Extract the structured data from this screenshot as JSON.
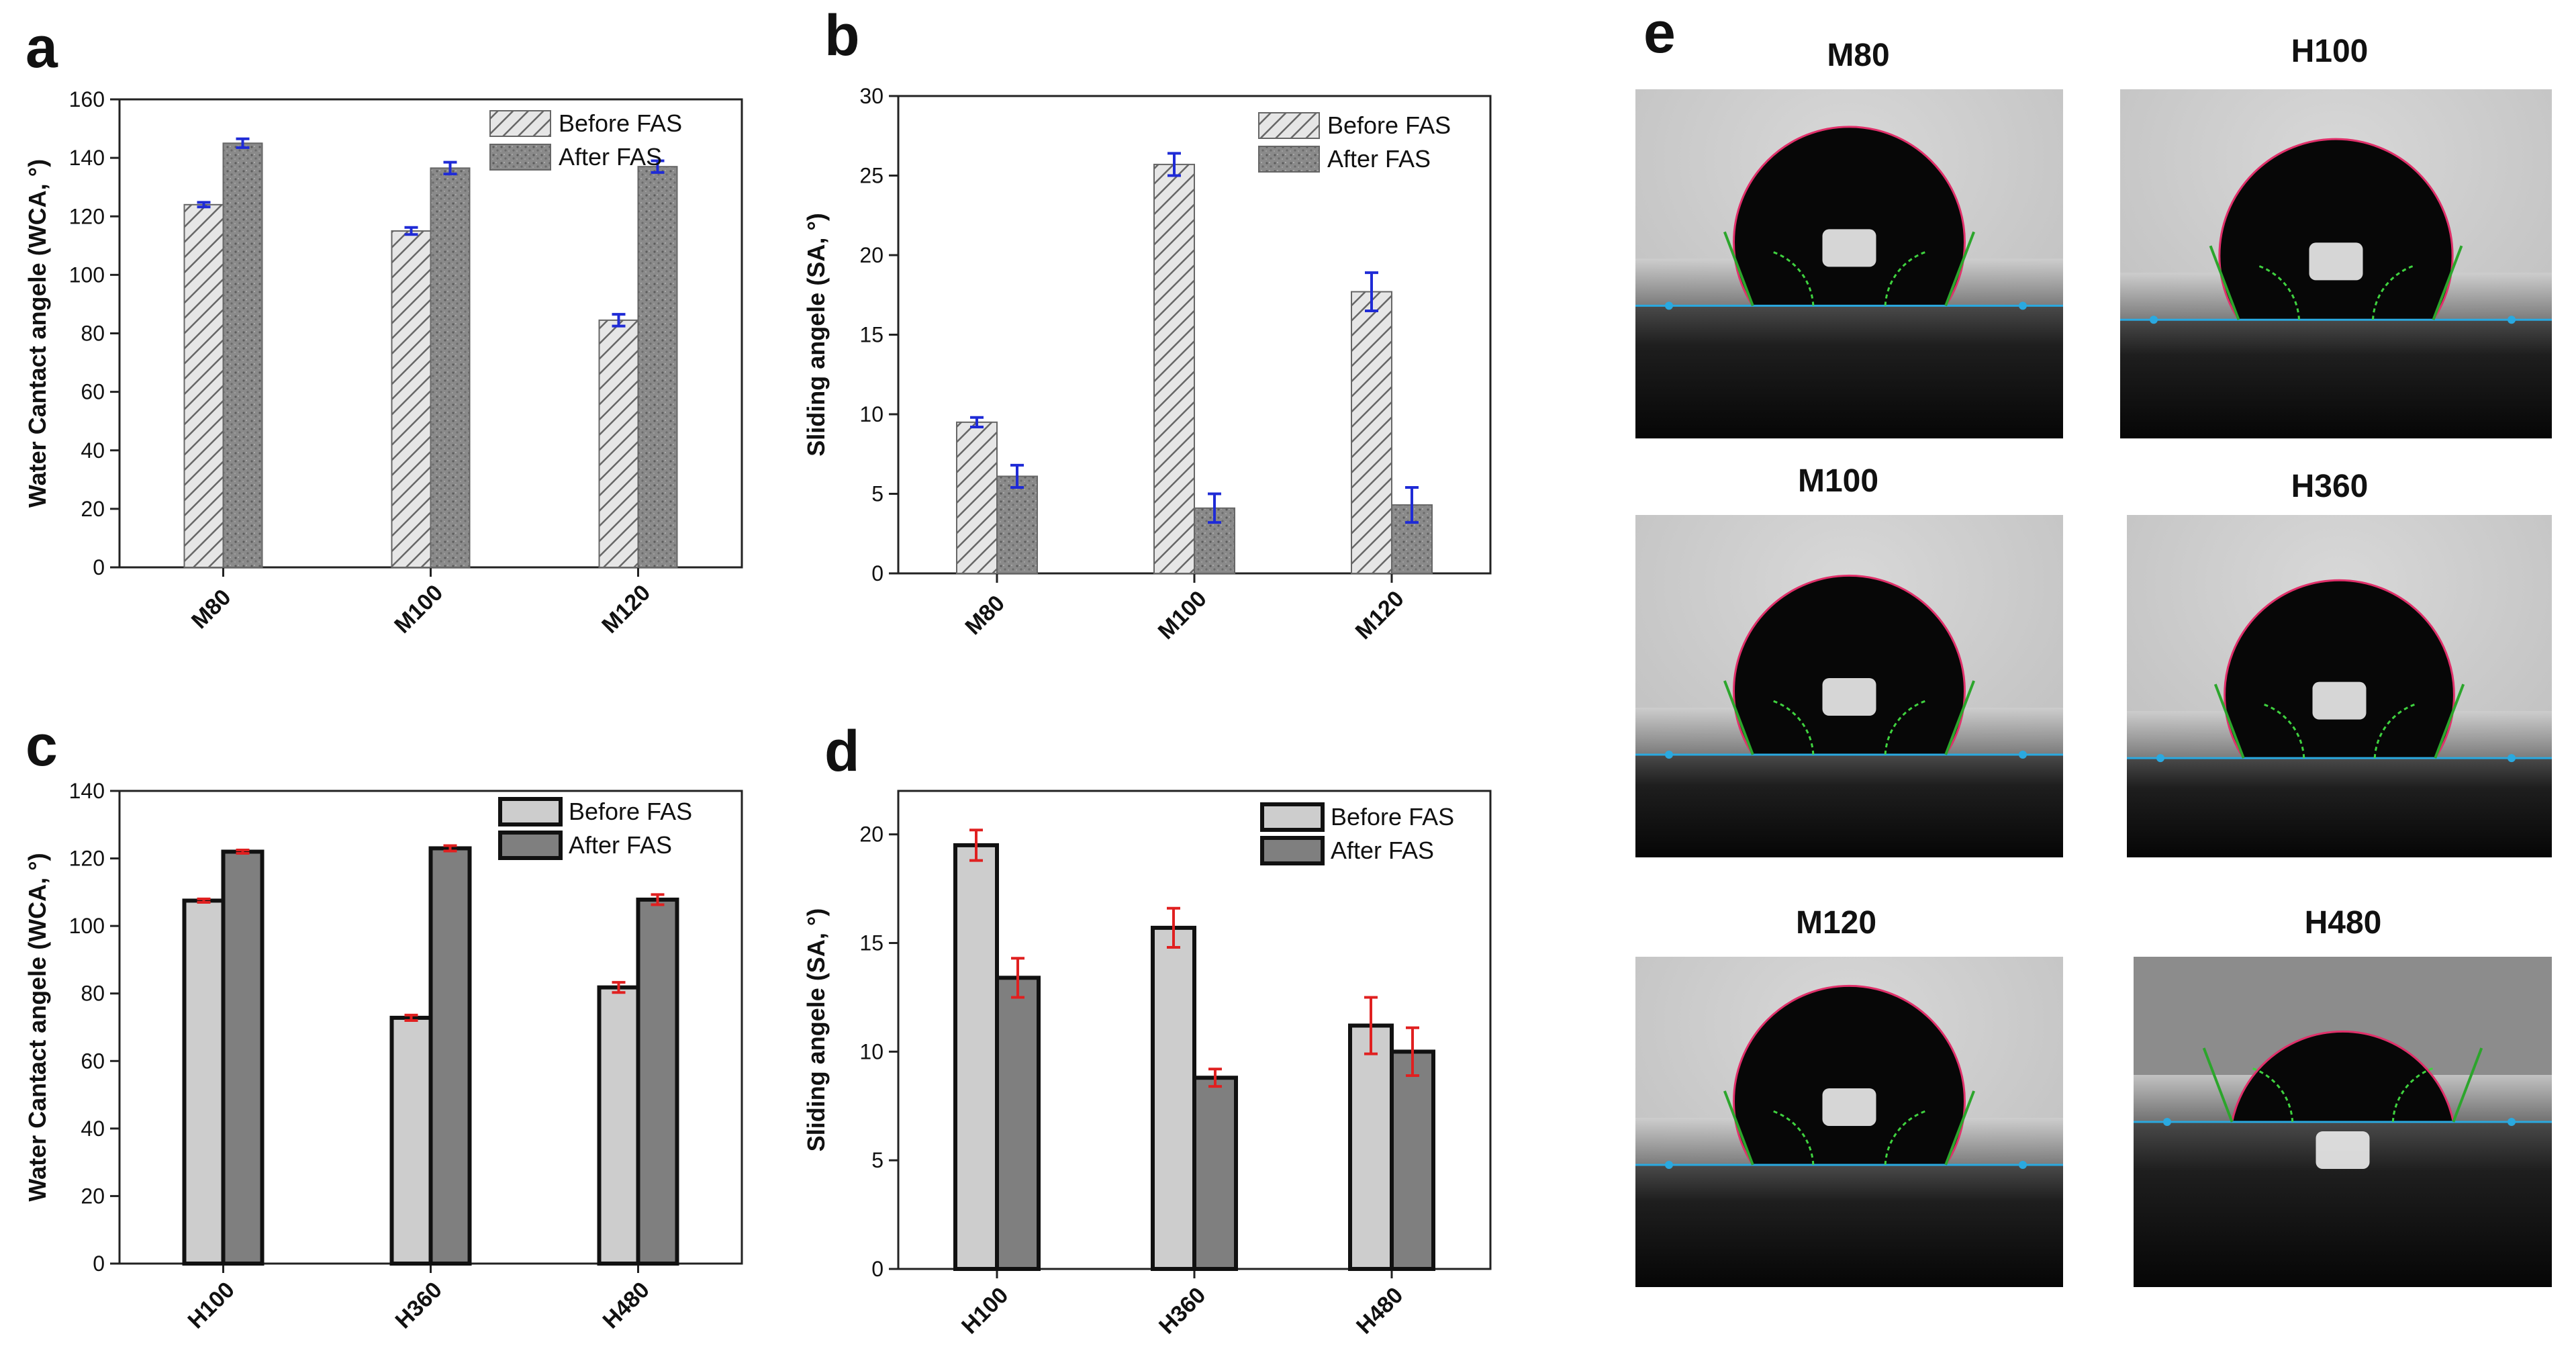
{
  "panels": [
    {
      "letter": "a"
    },
    {
      "letter": "b"
    },
    {
      "letter": "c"
    },
    {
      "letter": "d"
    },
    {
      "letter": "e"
    }
  ],
  "chart_data": [
    {
      "id": "a",
      "type": "bar",
      "ylabel": "Water Cantact angele (WCA, °)",
      "categories": [
        "M80",
        "M100",
        "M120"
      ],
      "ylim": [
        0,
        160
      ],
      "yticks": [
        0,
        20,
        40,
        60,
        80,
        100,
        120,
        140,
        160
      ],
      "series": [
        {
          "name": "Before FAS",
          "values": [
            124,
            115,
            84.5
          ],
          "errors": [
            0.8,
            1.2,
            2
          ],
          "style": "hatch"
        },
        {
          "name": "After FAS",
          "values": [
            145,
            136.5,
            137
          ],
          "errors": [
            1.5,
            2,
            2
          ],
          "style": "texture"
        }
      ],
      "error_color": "#1f2bd6"
    },
    {
      "id": "b",
      "type": "bar",
      "ylabel": "Sliding angele (SA, °)",
      "categories": [
        "M80",
        "M100",
        "M120"
      ],
      "ylim": [
        0,
        30
      ],
      "yticks": [
        0,
        5,
        10,
        15,
        20,
        25,
        30
      ],
      "series": [
        {
          "name": "Before FAS",
          "values": [
            9.5,
            25.7,
            17.7
          ],
          "errors": [
            0.3,
            0.7,
            1.2
          ],
          "style": "hatch"
        },
        {
          "name": "After FAS",
          "values": [
            6.1,
            4.1,
            4.3
          ],
          "errors": [
            0.7,
            0.9,
            1.1
          ],
          "style": "texture"
        }
      ],
      "error_color": "#1f2bd6"
    },
    {
      "id": "c",
      "type": "bar",
      "ylabel": "Water Cantact angele (WCA, °)",
      "categories": [
        "H100",
        "H360",
        "H480"
      ],
      "ylim": [
        0,
        140
      ],
      "yticks": [
        0,
        20,
        40,
        60,
        80,
        100,
        120,
        140
      ],
      "series": [
        {
          "name": "Before FAS",
          "values": [
            107.5,
            72.8,
            81.8
          ],
          "errors": [
            0.5,
            0.8,
            1.5
          ],
          "style": "light"
        },
        {
          "name": "After FAS",
          "values": [
            122,
            123,
            107.8
          ],
          "errors": [
            0.5,
            0.8,
            1.5
          ],
          "style": "dark"
        }
      ],
      "error_color": "#e02020"
    },
    {
      "id": "d",
      "type": "bar",
      "ylabel": "Sliding angele (SA, °)",
      "categories": [
        "H100",
        "H360",
        "H480"
      ],
      "ylim": [
        0,
        22
      ],
      "yticks": [
        0,
        5,
        10,
        15,
        20
      ],
      "series": [
        {
          "name": "Before FAS",
          "values": [
            19.5,
            15.7,
            11.2
          ],
          "errors": [
            0.7,
            0.9,
            1.3
          ],
          "style": "light"
        },
        {
          "name": "After FAS",
          "values": [
            13.4,
            8.8,
            10.0
          ],
          "errors": [
            0.9,
            0.4,
            1.1
          ],
          "style": "dark"
        }
      ],
      "error_color": "#e02020"
    }
  ],
  "droplets": [
    {
      "label": "M80"
    },
    {
      "label": "H100"
    },
    {
      "label": "M100"
    },
    {
      "label": "H360"
    },
    {
      "label": "M120"
    },
    {
      "label": "H480"
    }
  ]
}
